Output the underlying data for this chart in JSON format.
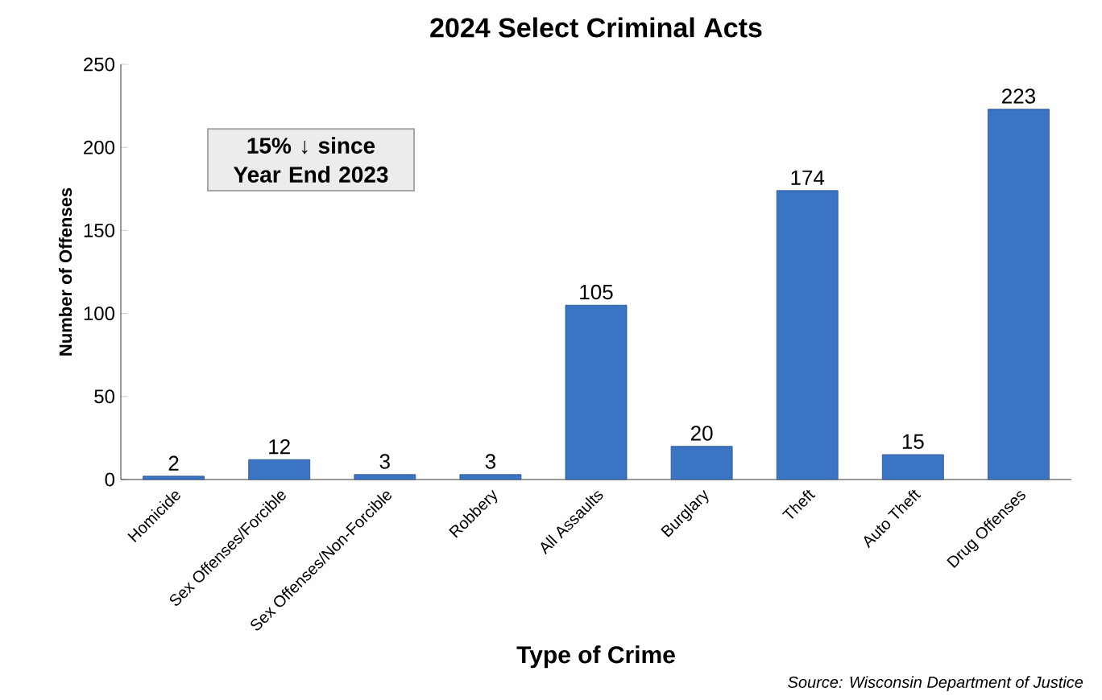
{
  "chart_data": {
    "type": "bar",
    "title": "2024 Select Criminal Acts",
    "xlabel": "Type of Crime",
    "ylabel": "Number of Offenses",
    "categories": [
      "Homicide",
      "Sex Offenses/Forcible",
      "Sex Offenses/Non-Forcible",
      "Robbery",
      "All Assaults",
      "Burglary",
      "Theft",
      "Auto Theft",
      "Drug Offenses"
    ],
    "values": [
      2,
      12,
      3,
      3,
      105,
      20,
      174,
      15,
      223
    ],
    "color": "#3b74c2",
    "ylim": [
      0,
      250
    ],
    "yticks": [
      0,
      50,
      100,
      150,
      200,
      250
    ],
    "data_labels": true,
    "annotations": [
      "15% ↓ since Year End 2023",
      "Source: Wisconsin Department of Justice"
    ]
  }
}
